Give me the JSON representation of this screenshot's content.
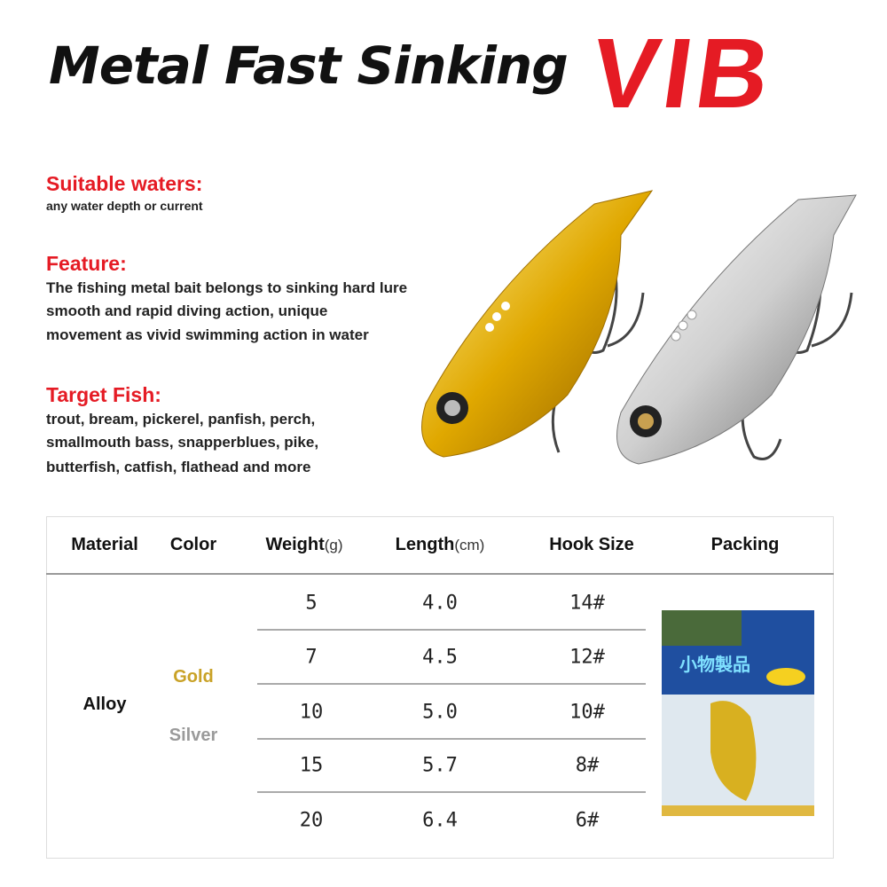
{
  "title": {
    "main": "Metal Fast Sinking",
    "accent": "VIB",
    "accent_color": "#e51b24"
  },
  "sections": [
    {
      "heading": "Suitable waters:",
      "lines": [
        "any water depth or current"
      ]
    },
    {
      "heading": "Feature:",
      "lines": [
        "The fishing metal bait belongs to sinking hard lure",
        "smooth and rapid diving action, unique",
        "movement as vivid swimming action in water"
      ]
    },
    {
      "heading": "Target Fish:",
      "lines": [
        "trout, bream, pickerel, panfish, perch,",
        "smallmouth bass, snapperblues, pike,",
        "butterfish, catfish,  flathead and more"
      ]
    }
  ],
  "table": {
    "headers": {
      "material": "Material",
      "color": "Color",
      "weight": "Weight",
      "weight_unit": "(g)",
      "length": "Length",
      "length_unit": "(cm)",
      "hook": "Hook Size",
      "packing": "Packing"
    },
    "material": "Alloy",
    "colors": [
      {
        "name": "Gold",
        "hex": "#c9a227"
      },
      {
        "name": "Silver",
        "hex": "#9a9a9a"
      }
    ],
    "rows": [
      {
        "weight": "5",
        "length": "4.0",
        "hook": "14#"
      },
      {
        "weight": "7",
        "length": "4.5",
        "hook": "12#"
      },
      {
        "weight": "10",
        "length": "5.0",
        "hook": "10#"
      },
      {
        "weight": "15",
        "length": "5.7",
        "hook": "8#"
      },
      {
        "weight": "20",
        "length": "6.4",
        "hook": "6#"
      }
    ]
  },
  "package_lettering": "小物製品"
}
